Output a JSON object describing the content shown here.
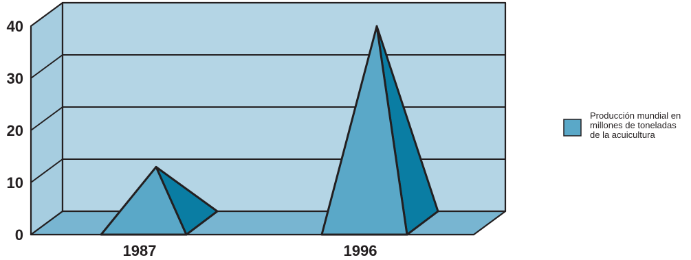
{
  "chart_data": {
    "type": "bar",
    "style": "3d-pyramid",
    "categories": [
      "1987",
      "1996"
    ],
    "series": [
      {
        "name": "Producción mundial en millones de toneladas de la acuicultura",
        "values": [
          8.5,
          35.5
        ]
      }
    ],
    "ylim": [
      0,
      40
    ],
    "yticks": [
      "0",
      "10",
      "20",
      "30",
      "40"
    ],
    "grid": true,
    "legend": {
      "position": "right",
      "lines": [
        "Producción mundial en",
        "millones de toneladas",
        "de la acuicultura"
      ]
    },
    "colors": {
      "back_wall": "#b4d5e5",
      "side_wall": "#a6cde0",
      "floor": "#78b5d1",
      "pyramid_front": "#5aa8c8",
      "pyramid_side": "#0a7da3",
      "outline": "#231f20"
    }
  }
}
